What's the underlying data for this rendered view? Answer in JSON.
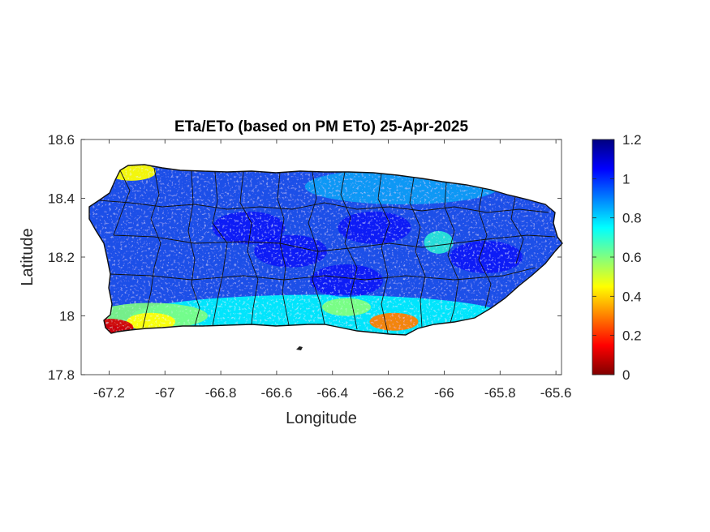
{
  "chart_data": {
    "type": "heatmap",
    "title": "ETa/ETo (based on PM ETo) 25-Apr-2025",
    "xlabel": "Longitude",
    "ylabel": "Latitude",
    "xlim": [
      -67.3,
      -65.58
    ],
    "ylim": [
      17.8,
      18.6
    ],
    "xticks": [
      -67.2,
      -67,
      -66.8,
      -66.6,
      -66.4,
      -66.2,
      -66,
      -65.8,
      -65.6
    ],
    "xtick_labels": [
      "-67.2",
      "-67",
      "-66.8",
      "-66.6",
      "-66.4",
      "-66.2",
      "-66",
      "-65.8",
      "-65.6"
    ],
    "yticks": [
      17.8,
      18,
      18.2,
      18.4,
      18.6
    ],
    "ytick_labels": [
      "17.8",
      "18",
      "18.2",
      "18.4",
      "18.6"
    ],
    "colormap": "jet",
    "colorbar": {
      "range": [
        0,
        1.2
      ],
      "ticks": [
        0,
        0.2,
        0.4,
        0.6,
        0.8,
        1,
        1.2
      ],
      "tick_labels": [
        "0",
        "0.2",
        "0.4",
        "0.6",
        "0.8",
        "1",
        "1.2"
      ],
      "colors": [
        "#800000",
        "#ff0000",
        "#ff8000",
        "#ffff00",
        "#80ff80",
        "#00ffff",
        "#0080ff",
        "#0000ff",
        "#000080"
      ]
    },
    "region": "Puerto Rico municipalities",
    "typical_value": 0.9,
    "low_value_areas": [
      {
        "name": "south coast near -66.2, 17.98",
        "lon": -66.18,
        "lat": 17.98,
        "value": 0.3
      },
      {
        "name": "southwest coast near -67.0, 17.97",
        "lon": -67.05,
        "lat": 17.98,
        "value": 0.45
      },
      {
        "name": "northwest corner near -67.1, 18.5",
        "lon": -67.12,
        "lat": 18.49,
        "value": 0.45
      },
      {
        "name": "southwest tip near -67.2, 17.95",
        "lon": -67.2,
        "lat": 17.96,
        "value": 0.1
      },
      {
        "name": "south central near -66.35, 18.02",
        "lon": -66.35,
        "lat": 18.03,
        "value": 0.6
      }
    ],
    "grid": false
  }
}
